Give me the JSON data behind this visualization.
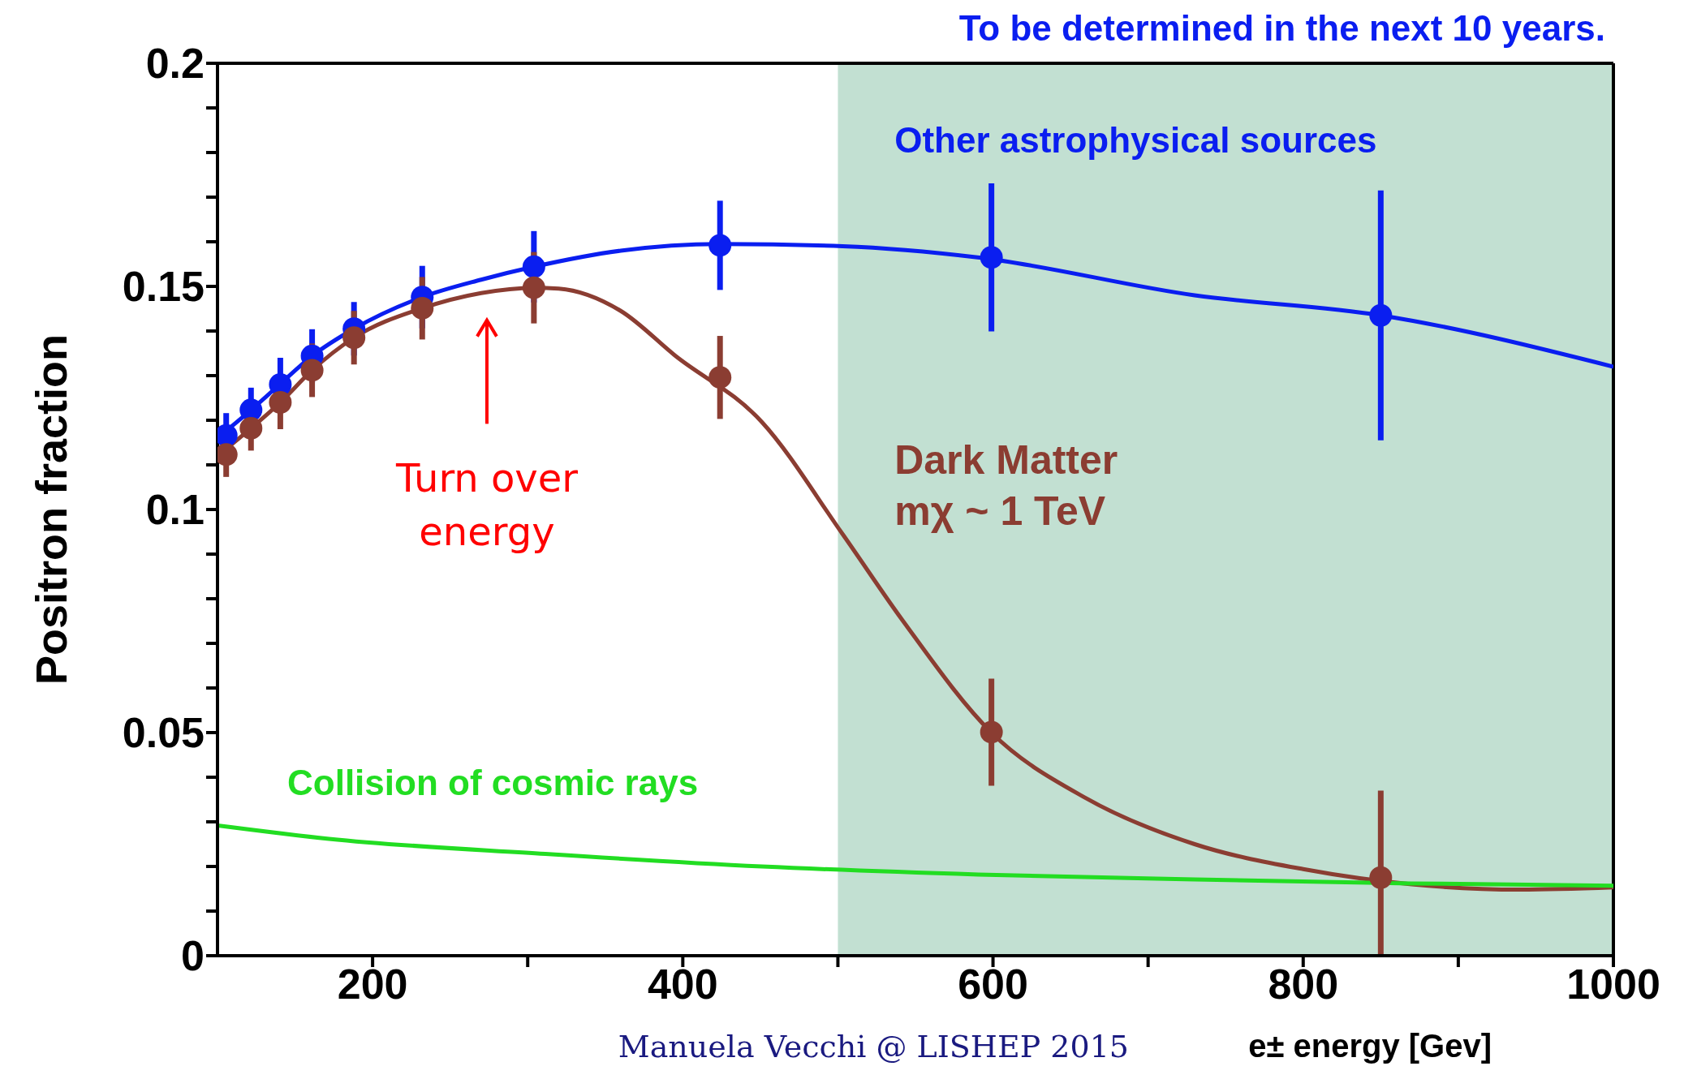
{
  "chart_data": {
    "type": "line",
    "title": "To be determined in the next 10 years.",
    "xlabel": "e± energy [Gev]",
    "ylabel": "Positron fraction",
    "xlim": [
      100,
      1000
    ],
    "ylim": [
      0,
      0.2
    ],
    "xticks": [
      200,
      {
        "value": 300,
        "label": null
      },
      400,
      {
        "value": 500,
        "label": null
      },
      600,
      {
        "value": 700,
        "label": null
      },
      800,
      {
        "value": 900,
        "label": null
      },
      1000
    ],
    "yticks": [
      0,
      {
        "value": 0.01,
        "label": null
      },
      {
        "value": 0.02,
        "label": null
      },
      {
        "value": 0.03,
        "label": null
      },
      {
        "value": 0.04,
        "label": null
      },
      0.05,
      {
        "value": 0.06,
        "label": null
      },
      {
        "value": 0.07,
        "label": null
      },
      {
        "value": 0.08,
        "label": null
      },
      {
        "value": 0.09,
        "label": null
      },
      0.1,
      {
        "value": 0.11,
        "label": null
      },
      {
        "value": 0.12,
        "label": null
      },
      {
        "value": 0.13,
        "label": null
      },
      {
        "value": 0.14,
        "label": null
      },
      0.15,
      {
        "value": 0.16,
        "label": null
      },
      {
        "value": 0.17,
        "label": null
      },
      {
        "value": 0.18,
        "label": null
      },
      {
        "value": 0.19,
        "label": null
      },
      0.2
    ],
    "line_style": "solid",
    "bands": [
      {
        "axis": "x",
        "from": 500,
        "to": 1000,
        "color": "#c2e0d2"
      }
    ],
    "series": [
      {
        "name": "Other astrophysical sources",
        "color": "#0a1ef0",
        "x": [
          100,
          121.6,
          140,
          161,
          188,
          232,
          270,
          304,
          360,
          424,
          503,
          590,
          730,
          850,
          1000
        ],
        "values": [
          0.116,
          0.1223,
          0.128,
          0.1344,
          0.1405,
          0.1476,
          0.1515,
          0.1544,
          0.158,
          0.1595,
          0.159,
          0.1565,
          0.148,
          0.1435,
          0.132
        ]
      },
      {
        "type": "scatter",
        "color": "#0a1ef0",
        "marker": "circle",
        "x": [
          105.6,
          121.6,
          140.5,
          161,
          188,
          232,
          304,
          424,
          599,
          850
        ],
        "values": [
          0.1166,
          0.1223,
          0.128,
          0.1344,
          0.1405,
          0.1476,
          0.1544,
          0.1592,
          0.1565,
          0.1435
        ],
        "errors": [
          0.005,
          0.005,
          0.006,
          0.006,
          0.006,
          0.007,
          0.008,
          0.01,
          0.0166,
          0.028
        ]
      },
      {
        "name": "Dark Matter mχ ~ 1 TeV",
        "color": "#8b3d32",
        "x": [
          100,
          121.6,
          140.5,
          161,
          188,
          232,
          270,
          304,
          320,
          360,
          395,
          451,
          503,
          542,
          599,
          660,
          730,
          800,
          870,
          940,
          1000
        ],
        "values": [
          0.112,
          0.1182,
          0.124,
          0.1312,
          0.1385,
          0.1451,
          0.1485,
          0.1497,
          0.1495,
          0.1445,
          0.1345,
          0.1196,
          0.0945,
          0.075,
          0.05,
          0.0353,
          0.025,
          0.0194,
          0.016,
          0.0148,
          0.0153
        ]
      },
      {
        "type": "scatter",
        "color": "#8b3d32",
        "marker": "circle",
        "x": [
          105.6,
          121.6,
          140.5,
          161,
          188,
          232,
          304,
          424,
          599,
          850
        ],
        "values": [
          0.1123,
          0.1182,
          0.124,
          0.1312,
          0.1385,
          0.1451,
          0.1497,
          0.1296,
          0.0501,
          0.0175
        ],
        "errors": [
          0.005,
          0.005,
          0.006,
          0.006,
          0.006,
          0.007,
          0.008,
          0.0093,
          0.012,
          [
            0,
            0.037
          ]
        ]
      },
      {
        "name": "Collision of cosmic rays",
        "color": "#22dd22",
        "x": [
          100,
          171.9,
          311.4,
          451,
          590.6,
          730.1,
          869.7,
          1000
        ],
        "values": [
          0.0292,
          0.0262,
          0.0228,
          0.02,
          0.0182,
          0.0171,
          0.0162,
          0.0157
        ]
      }
    ],
    "annotations": [
      "Turn over energy",
      "Manuela Vecchi @ LISHEP 2015"
    ]
  }
}
